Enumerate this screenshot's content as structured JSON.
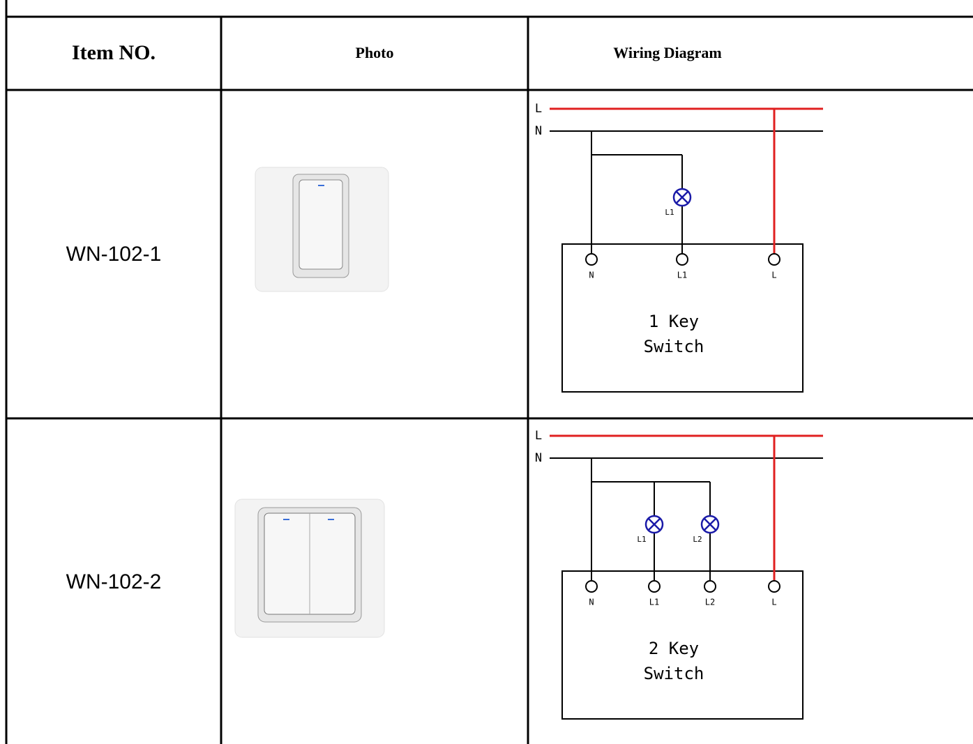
{
  "table": {
    "header": [
      "Item NO.",
      "Photo",
      "Wiring Diagram"
    ],
    "rows": [
      {
        "item": "WN-102-1",
        "diagram": {
          "lines": [
            "L",
            "N"
          ],
          "lamps": [
            "L1"
          ],
          "terminals": [
            "N",
            "L1",
            "L"
          ],
          "box": [
            "1 Key",
            "Switch"
          ]
        }
      },
      {
        "item": "WN-102-2",
        "diagram": {
          "lines": [
            "L",
            "N"
          ],
          "lamps": [
            "L1",
            "L2"
          ],
          "terminals": [
            "N",
            "L1",
            "L2",
            "L"
          ],
          "box": [
            "2 Key",
            "Switch"
          ]
        }
      }
    ]
  }
}
